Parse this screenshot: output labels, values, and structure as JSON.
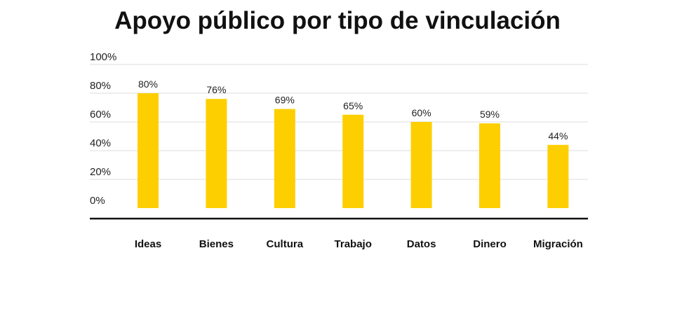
{
  "chart_data": {
    "type": "bar",
    "title": "Apoyo público por tipo de vinculación",
    "categories": [
      "Ideas",
      "Bienes",
      "Cultura",
      "Trabajo",
      "Datos",
      "Dinero",
      "Migración"
    ],
    "values": [
      80,
      76,
      69,
      65,
      60,
      59,
      44
    ],
    "data_labels": [
      "80%",
      "76%",
      "69%",
      "65%",
      "60%",
      "59%",
      "44%"
    ],
    "ylim": [
      0,
      100
    ],
    "yticks": [
      "0%",
      "20%",
      "40%",
      "60%",
      "80%",
      "100%"
    ],
    "ytick_values": [
      0,
      20,
      40,
      60,
      80,
      100
    ],
    "xlabel": "",
    "ylabel": "",
    "grid": true,
    "legend": "none",
    "bar_color": "#FDCF00",
    "grid_color": "#dddddd",
    "axis_color": "#111111"
  }
}
